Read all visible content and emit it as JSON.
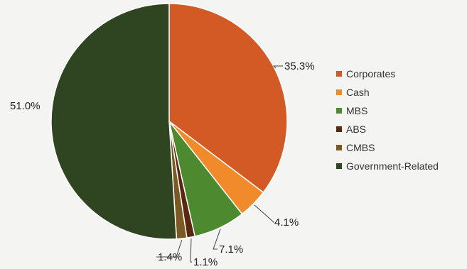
{
  "chart_data": {
    "type": "pie",
    "title": "",
    "slices": [
      {
        "label": "Corporates",
        "value": 35.3,
        "display": "35.3%",
        "color": "#d35a25"
      },
      {
        "label": "Cash",
        "value": 4.1,
        "display": "4.1%",
        "color": "#f08a2a"
      },
      {
        "label": "MBS",
        "value": 7.1,
        "display": "7.1%",
        "color": "#4d8a2f"
      },
      {
        "label": "ABS",
        "value": 1.1,
        "display": "1.1%",
        "color": "#5a2810"
      },
      {
        "label": "CMBS",
        "value": 1.4,
        "display": "1.4%",
        "color": "#7a5a22"
      },
      {
        "label": "Government-Related",
        "value": 51.0,
        "display": "51.0%",
        "color": "#2f4421"
      }
    ],
    "start_angle": "12 o'clock",
    "direction": "clockwise",
    "legend_position": "right"
  }
}
